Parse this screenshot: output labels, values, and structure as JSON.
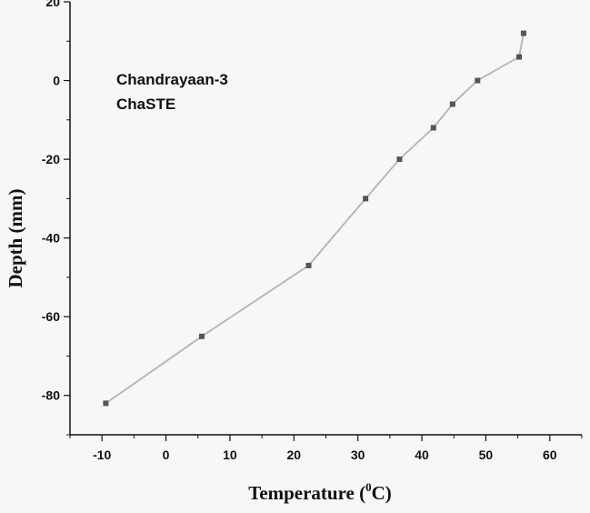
{
  "chart_data": {
    "type": "line",
    "title": "",
    "xlabel_main": "Temperature (",
    "xlabel_sup": "0",
    "xlabel_end": "C)",
    "ylabel": "Depth (mm)",
    "annotation_lines": [
      "Chandrayaan-3",
      "ChaSTE"
    ],
    "xlim": [
      -15,
      65
    ],
    "ylim": [
      -90,
      20
    ],
    "xticks": [
      -10,
      0,
      10,
      20,
      30,
      40,
      50,
      60
    ],
    "yticks": [
      20,
      0,
      -20,
      -40,
      -60,
      -80
    ],
    "x_tick_labels": [
      "-10",
      "0",
      "10",
      "20",
      "30",
      "40",
      "50",
      "60"
    ],
    "y_tick_labels": [
      "20",
      "0",
      "-20",
      "-40",
      "-60",
      "-80"
    ],
    "grid": false,
    "colors": {
      "line": "#b3b3b3",
      "marker": "#555555",
      "axis": "#111111"
    },
    "series": [
      {
        "x": [
          -9.4,
          5.6,
          22.3,
          31.2,
          36.5,
          41.8,
          44.8,
          48.7,
          55.2,
          55.9
        ],
        "y": [
          -82,
          -65,
          -47,
          -30,
          -20,
          -12,
          -6,
          0,
          6,
          12
        ]
      }
    ]
  }
}
